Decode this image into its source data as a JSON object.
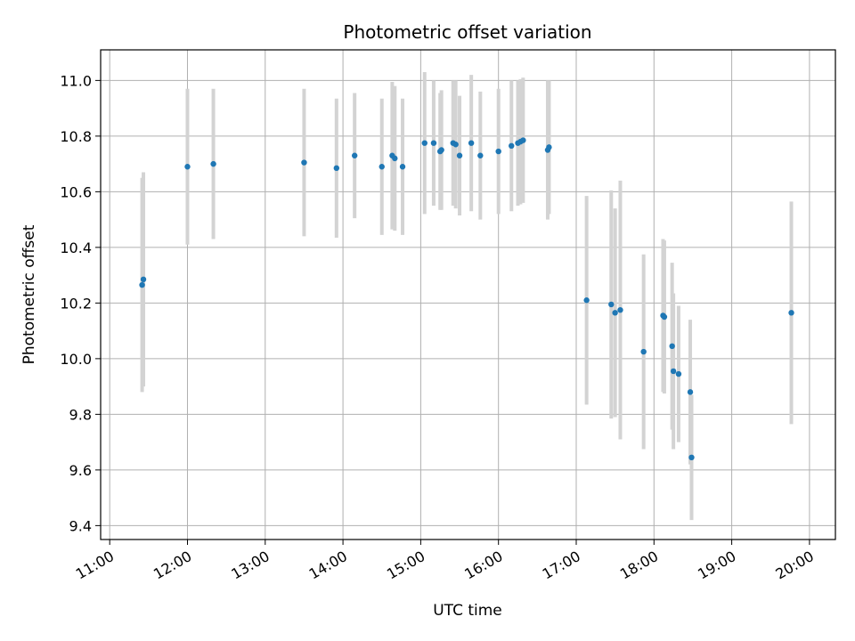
{
  "chart_data": {
    "type": "scatter",
    "title": "Photometric offset variation",
    "xlabel": "UTC time",
    "ylabel": "Photometric offset",
    "xlim": [
      "10:53",
      "20:20"
    ],
    "ylim": [
      9.35,
      11.11
    ],
    "x_ticks": [
      "11:00",
      "12:00",
      "13:00",
      "14:00",
      "15:00",
      "16:00",
      "17:00",
      "18:00",
      "19:00",
      "20:00"
    ],
    "y_ticks": [
      9.4,
      9.6,
      9.8,
      10.0,
      10.2,
      10.4,
      10.6,
      10.8,
      11.0
    ],
    "y_tick_labels": [
      "9.4",
      "9.6",
      "9.8",
      "10.0",
      "10.2",
      "10.4",
      "10.6",
      "10.8",
      "11.0"
    ],
    "grid": true,
    "colors": {
      "point": "#1f77b4",
      "errorbar": "#d3d3d3",
      "grid": "#b0b0b0"
    },
    "series": [
      {
        "points": [
          {
            "x": "11:25",
            "y": 10.265,
            "err": 0.385
          },
          {
            "x": "11:26",
            "y": 10.285,
            "err": 0.385
          },
          {
            "x": "12:00",
            "y": 10.69,
            "err": 0.28
          },
          {
            "x": "12:20",
            "y": 10.7,
            "err": 0.27
          },
          {
            "x": "13:30",
            "y": 10.705,
            "err": 0.265
          },
          {
            "x": "13:55",
            "y": 10.685,
            "err": 0.25
          },
          {
            "x": "14:09",
            "y": 10.73,
            "err": 0.225
          },
          {
            "x": "14:30",
            "y": 10.69,
            "err": 0.245
          },
          {
            "x": "14:38",
            "y": 10.73,
            "err": 0.265
          },
          {
            "x": "14:40",
            "y": 10.72,
            "err": 0.26
          },
          {
            "x": "14:46",
            "y": 10.69,
            "err": 0.245
          },
          {
            "x": "15:03",
            "y": 10.775,
            "err": 0.255
          },
          {
            "x": "15:10",
            "y": 10.775,
            "err": 0.225
          },
          {
            "x": "15:15",
            "y": 10.745,
            "err": 0.21
          },
          {
            "x": "15:16",
            "y": 10.75,
            "err": 0.215
          },
          {
            "x": "15:25",
            "y": 10.775,
            "err": 0.225
          },
          {
            "x": "15:27",
            "y": 10.77,
            "err": 0.23
          },
          {
            "x": "15:30",
            "y": 10.73,
            "err": 0.215
          },
          {
            "x": "15:39",
            "y": 10.775,
            "err": 0.245
          },
          {
            "x": "15:46",
            "y": 10.73,
            "err": 0.23
          },
          {
            "x": "16:00",
            "y": 10.745,
            "err": 0.225
          },
          {
            "x": "16:10",
            "y": 10.765,
            "err": 0.235
          },
          {
            "x": "16:15",
            "y": 10.775,
            "err": 0.225
          },
          {
            "x": "16:17",
            "y": 10.78,
            "err": 0.225
          },
          {
            "x": "16:19",
            "y": 10.785,
            "err": 0.225
          },
          {
            "x": "16:38",
            "y": 10.75,
            "err": 0.25
          },
          {
            "x": "16:39",
            "y": 10.76,
            "err": 0.24
          },
          {
            "x": "17:08",
            "y": 10.21,
            "err": 0.375
          },
          {
            "x": "17:27",
            "y": 10.195,
            "err": 0.41
          },
          {
            "x": "17:30",
            "y": 10.165,
            "err": 0.375
          },
          {
            "x": "17:34",
            "y": 10.175,
            "err": 0.465
          },
          {
            "x": "17:52",
            "y": 10.025,
            "err": 0.35
          },
          {
            "x": "18:07",
            "y": 10.155,
            "err": 0.275
          },
          {
            "x": "18:08",
            "y": 10.15,
            "err": 0.275
          },
          {
            "x": "18:14",
            "y": 10.045,
            "err": 0.3
          },
          {
            "x": "18:15",
            "y": 9.955,
            "err": 0.28
          },
          {
            "x": "18:19",
            "y": 9.945,
            "err": 0.245
          },
          {
            "x": "18:28",
            "y": 9.88,
            "err": 0.26
          },
          {
            "x": "18:29",
            "y": 9.645,
            "err": 0.225
          },
          {
            "x": "19:46",
            "y": 10.165,
            "err": 0.4
          }
        ]
      }
    ]
  }
}
